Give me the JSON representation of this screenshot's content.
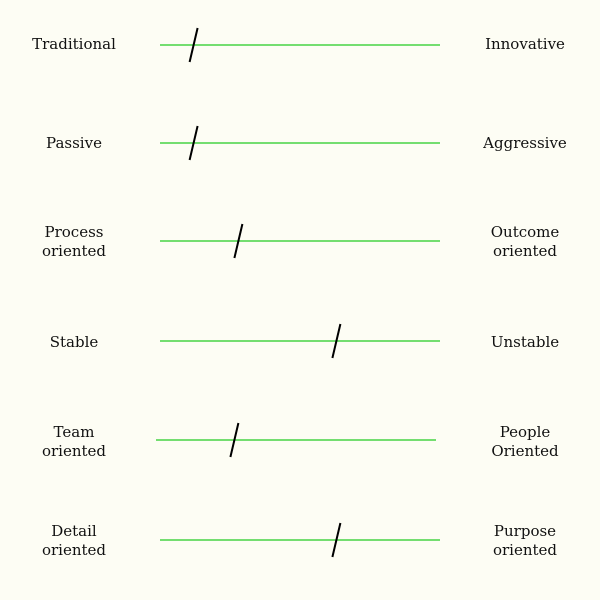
{
  "diagram": {
    "type": "semantic-differential",
    "scale_range": [
      0,
      1
    ],
    "rows": [
      {
        "left_label": "Traditional",
        "right_label": "Innovative",
        "marker_position": 0.12
      },
      {
        "left_label": "Passive",
        "right_label": "Aggressive",
        "marker_position": 0.12
      },
      {
        "left_label": "Process\noriented",
        "right_label": "Outcome\noriented",
        "marker_position": 0.28
      },
      {
        "left_label": "Stable",
        "right_label": "Unstable",
        "marker_position": 0.63
      },
      {
        "left_label": "Team\noriented",
        "right_label": "People\nOriented",
        "marker_position": 0.28
      },
      {
        "left_label": "Detail\noriented",
        "right_label": "Purpose\noriented",
        "marker_position": 0.63
      }
    ]
  },
  "colors": {
    "background": "#fdfdf4",
    "track": "#22cc22",
    "marker": "#000000",
    "text": "#111111"
  }
}
